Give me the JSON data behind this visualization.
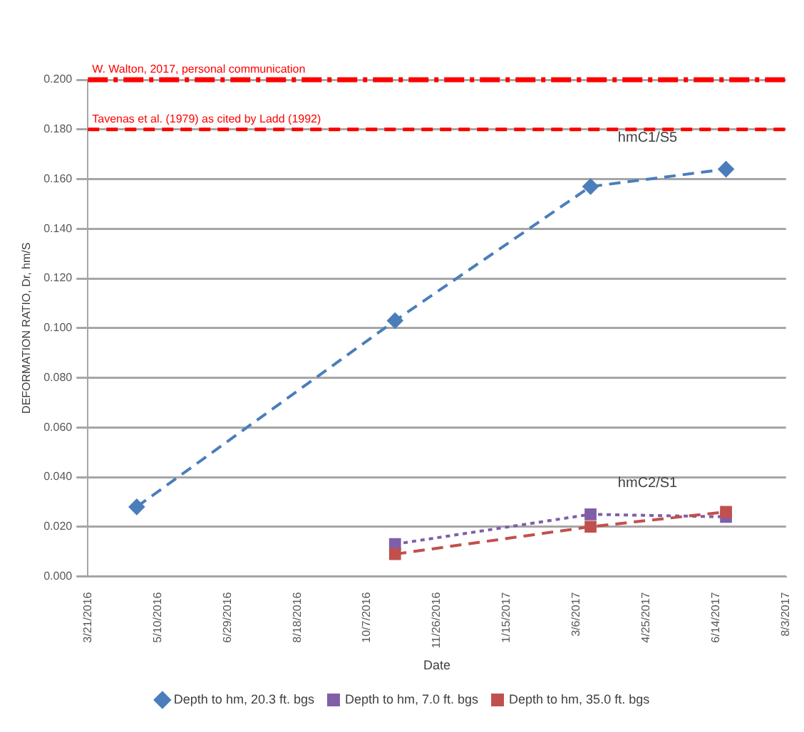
{
  "chart_data": {
    "type": "line",
    "xlabel": "Date",
    "ylabel": "DEFORMATION RATIO, Dr, hm/S",
    "x": [
      "2016-04-25",
      "2016-10-27",
      "2017-03-16",
      "2017-06-21"
    ],
    "series": [
      {
        "name": "Depth to hm, 20.3 ft. bgs",
        "color": "#4a7ebb",
        "values": [
          0.028,
          0.103,
          0.157,
          0.164
        ],
        "marker": "diamond",
        "line_style": "dashed"
      },
      {
        "name": "Depth to hm, 7.0 ft. bgs",
        "color": "#7f5fa8",
        "x": [
          "2016-10-27",
          "2017-03-16",
          "2017-06-21"
        ],
        "values": [
          0.013,
          0.025,
          0.024
        ],
        "marker": "square",
        "line_style": "dotted"
      },
      {
        "name": "Depth to hm, 35.0 ft. bgs",
        "color": "#c0504d",
        "x": [
          "2016-10-27",
          "2017-03-16",
          "2017-06-21"
        ],
        "values": [
          0.009,
          0.02,
          0.026
        ],
        "marker": "square",
        "line_style": "dashed"
      }
    ],
    "xlim": [
      "2016-03-21",
      "2017-08-03"
    ],
    "xticks": [
      {
        "value": "2016-03-21",
        "label": "3/21/2016"
      },
      {
        "value": "2016-05-10",
        "label": "5/10/2016"
      },
      {
        "value": "2016-06-29",
        "label": "6/29/2016"
      },
      {
        "value": "2016-08-18",
        "label": "8/18/2016"
      },
      {
        "value": "2016-10-07",
        "label": "10/7/2016"
      },
      {
        "value": "2016-11-26",
        "label": "11/26/2016"
      },
      {
        "value": "2017-01-15",
        "label": "1/15/2017"
      },
      {
        "value": "2017-03-06",
        "label": "3/6/2017"
      },
      {
        "value": "2017-04-25",
        "label": "4/25/2017"
      },
      {
        "value": "2017-06-14",
        "label": "6/14/2017"
      },
      {
        "value": "2017-08-03",
        "label": "8/3/2017"
      }
    ],
    "ylim": [
      0,
      0.2
    ],
    "yticks": [
      {
        "value": 0,
        "label": "0.000"
      },
      {
        "value": 0.02,
        "label": "0.020"
      },
      {
        "value": 0.04,
        "label": "0.040"
      },
      {
        "value": 0.06,
        "label": "0.060"
      },
      {
        "value": 0.08,
        "label": "0.080"
      },
      {
        "value": 0.1,
        "label": "0.100"
      },
      {
        "value": 0.12,
        "label": "0.120"
      },
      {
        "value": 0.14,
        "label": "0.140"
      },
      {
        "value": 0.16,
        "label": "0.160"
      },
      {
        "value": 0.18,
        "label": "0.180"
      },
      {
        "value": 0.2,
        "label": "0.200"
      }
    ],
    "grid": "y",
    "legend": "bottom",
    "ref_lines": [
      {
        "axis": "y",
        "value": 0.2,
        "label": "W. Walton, 2017, personal communication",
        "color": "#ff0000",
        "line_style": "dashdot"
      },
      {
        "axis": "y",
        "value": 0.18,
        "label": "Tavenas et al. (1979) as cited by Ladd (1992)",
        "color": "#ff0000",
        "line_style": "dashed"
      }
    ],
    "annotations": [
      "hmC1/S5",
      "hmC2/S1"
    ]
  }
}
